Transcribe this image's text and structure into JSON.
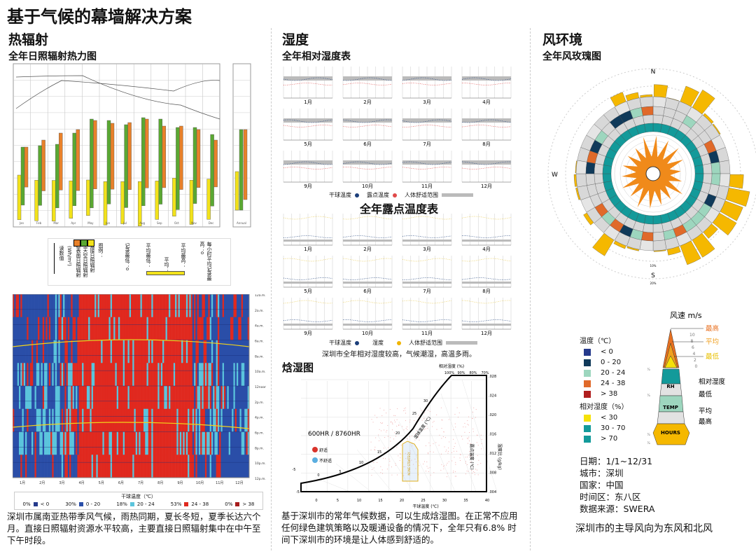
{
  "title": "基于气候的幕墙解决方案",
  "radiation": {
    "heading": "热辐射",
    "subheading": "全年日照辐射热力图",
    "months": [
      "Jan",
      "Feb",
      "Mar",
      "Apr",
      "May",
      "Jun",
      "Jul",
      "Aug",
      "Sep",
      "Oct",
      "Nov",
      "Dec"
    ],
    "annual_label": "Annual",
    "legend": {
      "caption": "图例：",
      "series": [
        "直接日照辐射",
        "全天空日照辐射",
        "总表面日照辐射"
      ],
      "series_colors": [
        "#f2e21b",
        "#5aa832",
        "#e8812a"
      ],
      "unit": "(Wh/m²)",
      "scale_label": "读数值",
      "avg_low": "平均最低：",
      "avg": "平均：",
      "avg_high": "平均最高：",
      "hourly_high": "每小时平均记录最高：o",
      "hourly_low": "记录最低：o"
    },
    "heatmap": {
      "hour_labels": [
        "12a.m.",
        "2a.m.",
        "4a.m.",
        "6a.m.",
        "8a.m.",
        "10a.m.",
        "12noon",
        "2p.m.",
        "4p.m.",
        "6p.m.",
        "8p.m.",
        "10p.m.",
        "12p.m."
      ],
      "month_labels": [
        "1月",
        "2月",
        "3月",
        "4月",
        "5月",
        "6月",
        "7月",
        "8月",
        "9月",
        "10月",
        "11月",
        "12月"
      ],
      "legend_title": "干球温度（℃）",
      "legend": [
        {
          "pct": "0%",
          "range": "< 0",
          "color": "#253a8c"
        },
        {
          "pct": "30%",
          "range": "0 - 20",
          "color": "#2a4ea8"
        },
        {
          "pct": "18%",
          "range": "20 - 24",
          "color": "#5bc4dc"
        },
        {
          "pct": "53%",
          "range": "24 - 38",
          "color": "#e0291f"
        },
        {
          "pct": "0%",
          "range": "> 38",
          "color": "#a61b1b"
        }
      ]
    },
    "paragraph": "深圳市属南亚热带季风气候，雨热同期，夏长冬短，夏季长达六个月。直接日照辐射资源水平较高，主要直接日照辐射集中在中午至下午时段。"
  },
  "humidity": {
    "heading": "湿度",
    "rh_title": "全年相对湿度表",
    "months": [
      "1月",
      "2月",
      "3月",
      "4月",
      "5月",
      "6月",
      "7月",
      "8月",
      "9月",
      "10月",
      "11月",
      "12月"
    ],
    "rh_legend": {
      "dry_bulb": "干球温度",
      "dew_point": "露点温度",
      "comfort": "人体舒适范围"
    },
    "dp_title": "全年露点温度表",
    "dp_legend": {
      "dry_bulb": "干球温度",
      "humidity": "湿度",
      "comfort": "人体舒适范围"
    },
    "caption": "深圳市全年相对湿度较高，气候潮湿，高温多雨。",
    "psychro": {
      "heading": "焓湿图",
      "rh_axis_title": "相对湿度 (%)",
      "rh_ticks": [
        "100%",
        "90%",
        "80%",
        "70%"
      ],
      "hours": "600HR / 8760HR",
      "comfortable": "舒适",
      "uncomfortable": "不舒适",
      "wet_bulb_label": "湿球温度 (℃)",
      "wet_bulb_ticks": [
        "-5",
        "0",
        "5",
        "10",
        "15",
        "20",
        "25",
        "30"
      ],
      "x_title": "干球温度 (℃)",
      "x_ticks": [
        "0",
        "5",
        "10",
        "15",
        "20",
        "25",
        "30",
        "35",
        "40"
      ],
      "x_min_label": "-5",
      "y_ticks": [
        ".028",
        ".024",
        ".020",
        ".016",
        ".012",
        ".008",
        ".004"
      ],
      "y_title": "湿度比 (g/kg)",
      "dew_label": "露点温度 (℃)",
      "zone_label": "NONE STRATEGY",
      "comfort_color": "#d9332b",
      "uncomfort_color": "#5aaee0"
    },
    "paragraph": "基于深圳市的常年气候数据，可以生成焓湿图。在正常不应用任何绿色建筑策略以及暖通设备的情况下，全年只有6.8% 时间下深圳市的环境是让人体感到舒适的。"
  },
  "wind": {
    "heading": "风环境",
    "subheading": "全年风玫瑰图",
    "north": "N",
    "south": "S",
    "west": "W",
    "ring_10": "10%",
    "ring_20": "20%",
    "speed_title": "风速 m/s",
    "speed_ticks": [
      "10",
      "8",
      "6",
      "4",
      "2",
      "0"
    ],
    "speed_labels": {
      "max": "最高",
      "avg": "平均",
      "min": "最低"
    },
    "pct_ticks": [
      "0%",
      "AVG",
      "100%",
      "10%",
      "20%"
    ],
    "key_rh": "RH",
    "key_temp": "TEMP",
    "key_hours": "HOURS",
    "key_labels": [
      "相对湿度",
      "最低",
      "平均",
      "最高"
    ],
    "temp_legend_title": "温度（℃）",
    "temp_legend": [
      {
        "range": "< 0",
        "color": "#253a8c"
      },
      {
        "range": "0 - 20",
        "color": "#103a5a"
      },
      {
        "range": "20 - 24",
        "color": "#9dd6be"
      },
      {
        "range": "24 - 38",
        "color": "#e06a2a"
      },
      {
        "range": "> 38",
        "color": "#b01e1e"
      }
    ],
    "rh_legend_title": "相对湿度（%）",
    "rh_legend": [
      {
        "range": "< 30",
        "color": "#f5e10a"
      },
      {
        "range": "30 - 70",
        "color": "#139a9a"
      },
      {
        "range": "> 70",
        "color": "#139a9a"
      }
    ],
    "info": [
      "日期：1/1~12/31",
      "城市：深圳",
      "国家：中国",
      "时间区：东八区",
      "数据来源：SWERA"
    ],
    "conclusion": "深圳市的主导风向为东风和北风"
  }
}
